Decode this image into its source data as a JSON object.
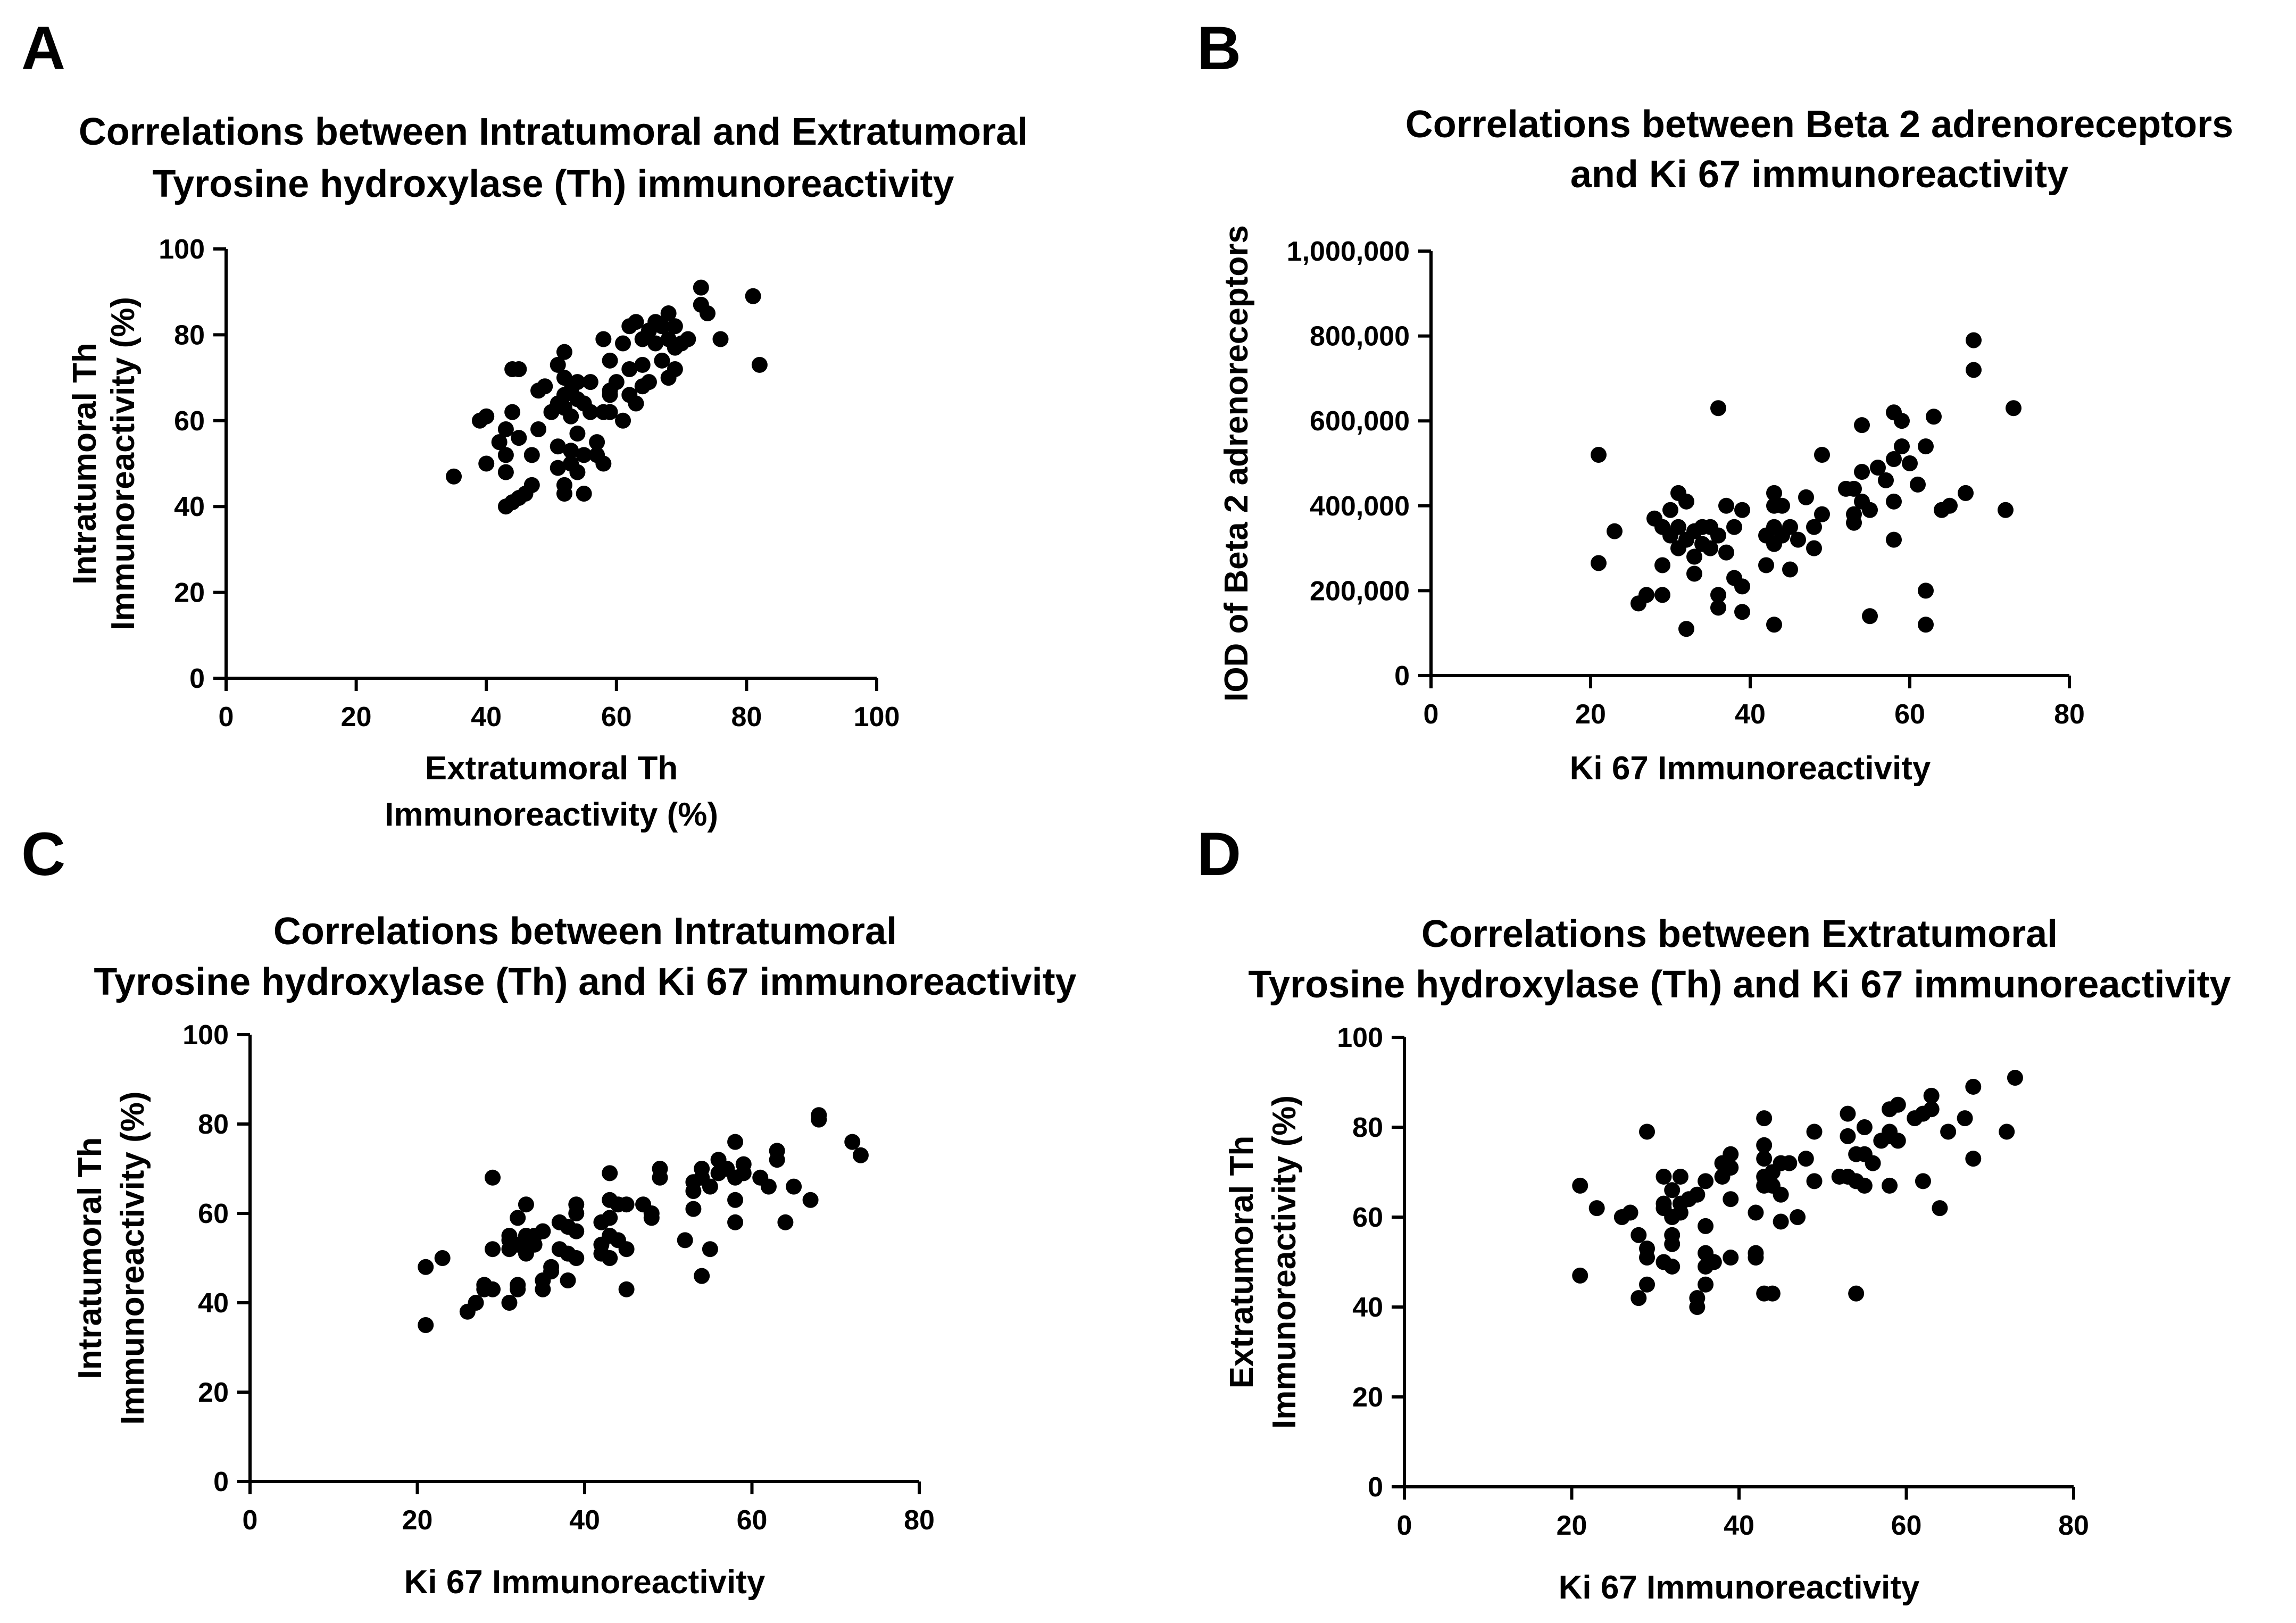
{
  "colors": {
    "ink": "#000000",
    "background": "#ffffff"
  },
  "chart_data": [
    {
      "panel": "A",
      "type": "scatter",
      "title": [
        "Correlations between Intratumoral and Extratumoral",
        "Tyrosine hydroxylase (Th) immunoreactivity"
      ],
      "xlabel": [
        "Extratumoral Th",
        "Immunoreactivity (%)"
      ],
      "ylabel": [
        "Intratumoral Th",
        "Immunoreactivity (%)"
      ],
      "xlim": [
        0,
        100
      ],
      "ylim": [
        0,
        100
      ],
      "xticks": [
        "0",
        "20",
        "40",
        "60",
        "80",
        "100"
      ],
      "yticks": [
        "0",
        "20",
        "40",
        "60",
        "80",
        "100"
      ],
      "points": [
        [
          35,
          47
        ],
        [
          39,
          60
        ],
        [
          40,
          61
        ],
        [
          40,
          50
        ],
        [
          42,
          55
        ],
        [
          43,
          58
        ],
        [
          43,
          52
        ],
        [
          43,
          48
        ],
        [
          43,
          40
        ],
        [
          44,
          41
        ],
        [
          44,
          62
        ],
        [
          44,
          72
        ],
        [
          45,
          72
        ],
        [
          45,
          56
        ],
        [
          45,
          42
        ],
        [
          46,
          43
        ],
        [
          47,
          45
        ],
        [
          47,
          52
        ],
        [
          48,
          67
        ],
        [
          48,
          58
        ],
        [
          49,
          68
        ],
        [
          50,
          62
        ],
        [
          51,
          73
        ],
        [
          51,
          64
        ],
        [
          51,
          54
        ],
        [
          51,
          49
        ],
        [
          52,
          76
        ],
        [
          52,
          70
        ],
        [
          52,
          66
        ],
        [
          52,
          63
        ],
        [
          52,
          45
        ],
        [
          52,
          43
        ],
        [
          53,
          67
        ],
        [
          53,
          61
        ],
        [
          53,
          53
        ],
        [
          53,
          50
        ],
        [
          54,
          69
        ],
        [
          54,
          65
        ],
        [
          54,
          57
        ],
        [
          54,
          48
        ],
        [
          55,
          64
        ],
        [
          55,
          43
        ],
        [
          55,
          52
        ],
        [
          56,
          69
        ],
        [
          56,
          62
        ],
        [
          57,
          52
        ],
        [
          57,
          55
        ],
        [
          58,
          50
        ],
        [
          58,
          79
        ],
        [
          58,
          62
        ],
        [
          59,
          62
        ],
        [
          59,
          66
        ],
        [
          59,
          74
        ],
        [
          59,
          67
        ],
        [
          60,
          69
        ],
        [
          61,
          60
        ],
        [
          61,
          78
        ],
        [
          62,
          66
        ],
        [
          62,
          72
        ],
        [
          62,
          82
        ],
        [
          63,
          83
        ],
        [
          63,
          64
        ],
        [
          64,
          68
        ],
        [
          64,
          73
        ],
        [
          64,
          79
        ],
        [
          65,
          69
        ],
        [
          65,
          81
        ],
        [
          66,
          83
        ],
        [
          66,
          78
        ],
        [
          67,
          82
        ],
        [
          67,
          74
        ],
        [
          68,
          70
        ],
        [
          68,
          85
        ],
        [
          68,
          79
        ],
        [
          69,
          82
        ],
        [
          69,
          77
        ],
        [
          69,
          72
        ],
        [
          70,
          78
        ],
        [
          71,
          79
        ],
        [
          73,
          91
        ],
        [
          73,
          87
        ],
        [
          74,
          85
        ],
        [
          76,
          79
        ],
        [
          81,
          89
        ],
        [
          82,
          73
        ]
      ]
    },
    {
      "panel": "B",
      "type": "scatter",
      "title": [
        "Correlations between Beta 2 adrenoreceptors",
        "and Ki 67 immunoreactivity"
      ],
      "xlabel": [
        "Ki 67 Immunoreactivity"
      ],
      "ylabel": [
        "IOD of Beta 2 adrenoreceptors"
      ],
      "xlim": [
        0,
        80
      ],
      "ylim": [
        0,
        1000000
      ],
      "xticks": [
        "0",
        "20",
        "40",
        "60",
        "80"
      ],
      "yticks": [
        "0",
        "200,000",
        "400,000",
        "600,000",
        "800,000",
        "1,000,000"
      ],
      "points": [
        [
          21,
          520000
        ],
        [
          21,
          265000
        ],
        [
          23,
          340000
        ],
        [
          26,
          170000
        ],
        [
          27,
          190000
        ],
        [
          28,
          370000
        ],
        [
          29,
          350000
        ],
        [
          29,
          190000
        ],
        [
          29,
          260000
        ],
        [
          30,
          330000
        ],
        [
          30,
          390000
        ],
        [
          31,
          300000
        ],
        [
          31,
          430000
        ],
        [
          31,
          350000
        ],
        [
          32,
          110000
        ],
        [
          32,
          410000
        ],
        [
          32,
          320000
        ],
        [
          33,
          340000
        ],
        [
          33,
          280000
        ],
        [
          33,
          240000
        ],
        [
          34,
          350000
        ],
        [
          34,
          310000
        ],
        [
          35,
          300000
        ],
        [
          35,
          350000
        ],
        [
          36,
          630000
        ],
        [
          36,
          330000
        ],
        [
          36,
          160000
        ],
        [
          36,
          190000
        ],
        [
          37,
          400000
        ],
        [
          37,
          290000
        ],
        [
          38,
          350000
        ],
        [
          38,
          230000
        ],
        [
          39,
          390000
        ],
        [
          39,
          210000
        ],
        [
          39,
          150000
        ],
        [
          42,
          330000
        ],
        [
          42,
          260000
        ],
        [
          43,
          430000
        ],
        [
          43,
          400000
        ],
        [
          43,
          350000
        ],
        [
          43,
          310000
        ],
        [
          43,
          120000
        ],
        [
          44,
          330000
        ],
        [
          44,
          400000
        ],
        [
          45,
          350000
        ],
        [
          45,
          250000
        ],
        [
          46,
          320000
        ],
        [
          47,
          420000
        ],
        [
          48,
          350000
        ],
        [
          48,
          300000
        ],
        [
          49,
          520000
        ],
        [
          49,
          380000
        ],
        [
          52,
          440000
        ],
        [
          53,
          440000
        ],
        [
          53,
          380000
        ],
        [
          53,
          360000
        ],
        [
          54,
          590000
        ],
        [
          54,
          480000
        ],
        [
          54,
          410000
        ],
        [
          55,
          390000
        ],
        [
          55,
          140000
        ],
        [
          56,
          490000
        ],
        [
          57,
          460000
        ],
        [
          58,
          620000
        ],
        [
          58,
          510000
        ],
        [
          58,
          410000
        ],
        [
          58,
          320000
        ],
        [
          59,
          600000
        ],
        [
          59,
          540000
        ],
        [
          60,
          500000
        ],
        [
          61,
          450000
        ],
        [
          62,
          540000
        ],
        [
          62,
          200000
        ],
        [
          62,
          120000
        ],
        [
          63,
          610000
        ],
        [
          64,
          390000
        ],
        [
          65,
          400000
        ],
        [
          67,
          430000
        ],
        [
          68,
          790000
        ],
        [
          68,
          720000
        ],
        [
          72,
          390000
        ],
        [
          73,
          630000
        ]
      ]
    },
    {
      "panel": "C",
      "type": "scatter",
      "title": [
        "Correlations between Intratumoral",
        "Tyrosine hydroxylase (Th) and Ki 67 immunoreactivity"
      ],
      "xlabel": [
        "Ki 67 Immunoreactivity"
      ],
      "ylabel": [
        "Intratumoral Th",
        "Immunoreactivity (%)"
      ],
      "xlim": [
        0,
        80
      ],
      "ylim": [
        0,
        100
      ],
      "xticks": [
        "0",
        "20",
        "40",
        "60",
        "80"
      ],
      "yticks": [
        "0",
        "20",
        "40",
        "60",
        "80",
        "100"
      ],
      "points": [
        [
          21,
          48
        ],
        [
          21,
          35
        ],
        [
          23,
          50
        ],
        [
          26,
          38
        ],
        [
          27,
          40
        ],
        [
          28,
          44
        ],
        [
          28,
          43
        ],
        [
          29,
          43
        ],
        [
          29,
          68
        ],
        [
          29,
          52
        ],
        [
          31,
          55
        ],
        [
          31,
          54
        ],
        [
          31,
          52
        ],
        [
          31,
          40
        ],
        [
          32,
          59
        ],
        [
          32,
          53
        ],
        [
          32,
          44
        ],
        [
          32,
          43
        ],
        [
          33,
          62
        ],
        [
          33,
          55
        ],
        [
          33,
          54
        ],
        [
          33,
          51
        ],
        [
          34,
          55
        ],
        [
          34,
          53
        ],
        [
          35,
          56
        ],
        [
          35,
          45
        ],
        [
          35,
          43
        ],
        [
          36,
          48
        ],
        [
          36,
          47
        ],
        [
          37,
          58
        ],
        [
          37,
          52
        ],
        [
          38,
          57
        ],
        [
          38,
          51
        ],
        [
          38,
          45
        ],
        [
          39,
          62
        ],
        [
          39,
          60
        ],
        [
          39,
          56
        ],
        [
          39,
          50
        ],
        [
          42,
          58
        ],
        [
          42,
          53
        ],
        [
          42,
          51
        ],
        [
          43,
          69
        ],
        [
          43,
          63
        ],
        [
          43,
          59
        ],
        [
          43,
          55
        ],
        [
          43,
          50
        ],
        [
          44,
          62
        ],
        [
          44,
          54
        ],
        [
          45,
          62
        ],
        [
          45,
          52
        ],
        [
          45,
          43
        ],
        [
          47,
          62
        ],
        [
          48,
          60
        ],
        [
          48,
          59
        ],
        [
          49,
          70
        ],
        [
          49,
          68
        ],
        [
          52,
          54
        ],
        [
          53,
          67
        ],
        [
          53,
          65
        ],
        [
          53,
          61
        ],
        [
          54,
          70
        ],
        [
          54,
          68
        ],
        [
          54,
          46
        ],
        [
          55,
          66
        ],
        [
          55,
          52
        ],
        [
          56,
          69
        ],
        [
          56,
          72
        ],
        [
          57,
          70
        ],
        [
          58,
          76
        ],
        [
          58,
          68
        ],
        [
          58,
          63
        ],
        [
          58,
          58
        ],
        [
          59,
          71
        ],
        [
          59,
          69
        ],
        [
          61,
          68
        ],
        [
          62,
          66
        ],
        [
          63,
          74
        ],
        [
          63,
          72
        ],
        [
          64,
          58
        ],
        [
          65,
          66
        ],
        [
          67,
          63
        ],
        [
          68,
          82
        ],
        [
          68,
          81
        ],
        [
          72,
          76
        ],
        [
          73,
          73
        ]
      ]
    },
    {
      "panel": "D",
      "type": "scatter",
      "title": [
        "Correlations between Extratumoral",
        "Tyrosine hydroxylase (Th) and Ki 67 immunoreactivity"
      ],
      "xlabel": [
        "Ki 67 Immunoreactivity"
      ],
      "ylabel": [
        "Extratumoral Th",
        "Immunoreactivity (%)"
      ],
      "xlim": [
        0,
        80
      ],
      "ylim": [
        0,
        100
      ],
      "xticks": [
        "0",
        "20",
        "40",
        "60",
        "80"
      ],
      "yticks": [
        "0",
        "20",
        "40",
        "60",
        "80",
        "100"
      ],
      "points": [
        [
          21,
          67
        ],
        [
          21,
          47
        ],
        [
          23,
          62
        ],
        [
          26,
          60
        ],
        [
          27,
          61
        ],
        [
          28,
          56
        ],
        [
          28,
          42
        ],
        [
          29,
          79
        ],
        [
          29,
          53
        ],
        [
          29,
          51
        ],
        [
          29,
          45
        ],
        [
          31,
          69
        ],
        [
          31,
          63
        ],
        [
          31,
          62
        ],
        [
          31,
          50
        ],
        [
          32,
          66
        ],
        [
          32,
          60
        ],
        [
          32,
          56
        ],
        [
          32,
          54
        ],
        [
          32,
          49
        ],
        [
          33,
          69
        ],
        [
          33,
          63
        ],
        [
          33,
          61
        ],
        [
          34,
          64
        ],
        [
          35,
          65
        ],
        [
          35,
          42
        ],
        [
          35,
          40
        ],
        [
          36,
          68
        ],
        [
          36,
          58
        ],
        [
          36,
          52
        ],
        [
          36,
          49
        ],
        [
          36,
          45
        ],
        [
          37,
          50
        ],
        [
          38,
          72
        ],
        [
          38,
          69
        ],
        [
          39,
          74
        ],
        [
          39,
          71
        ],
        [
          39,
          64
        ],
        [
          39,
          51
        ],
        [
          42,
          61
        ],
        [
          42,
          52
        ],
        [
          42,
          51
        ],
        [
          43,
          82
        ],
        [
          43,
          76
        ],
        [
          43,
          73
        ],
        [
          43,
          69
        ],
        [
          43,
          67
        ],
        [
          43,
          43
        ],
        [
          44,
          70
        ],
        [
          44,
          67
        ],
        [
          44,
          43
        ],
        [
          45,
          72
        ],
        [
          45,
          65
        ],
        [
          45,
          59
        ],
        [
          46,
          72
        ],
        [
          47,
          60
        ],
        [
          48,
          73
        ],
        [
          49,
          79
        ],
        [
          49,
          68
        ],
        [
          52,
          69
        ],
        [
          53,
          83
        ],
        [
          53,
          78
        ],
        [
          53,
          69
        ],
        [
          54,
          74
        ],
        [
          54,
          68
        ],
        [
          54,
          43
        ],
        [
          55,
          80
        ],
        [
          55,
          74
        ],
        [
          55,
          67
        ],
        [
          56,
          72
        ],
        [
          57,
          77
        ],
        [
          58,
          84
        ],
        [
          58,
          79
        ],
        [
          58,
          78
        ],
        [
          58,
          67
        ],
        [
          59,
          85
        ],
        [
          59,
          77
        ],
        [
          61,
          82
        ],
        [
          62,
          83
        ],
        [
          62,
          68
        ],
        [
          63,
          87
        ],
        [
          63,
          84
        ],
        [
          64,
          62
        ],
        [
          65,
          79
        ],
        [
          67,
          82
        ],
        [
          68,
          89
        ],
        [
          68,
          73
        ],
        [
          72,
          79
        ],
        [
          73,
          91
        ]
      ]
    }
  ]
}
